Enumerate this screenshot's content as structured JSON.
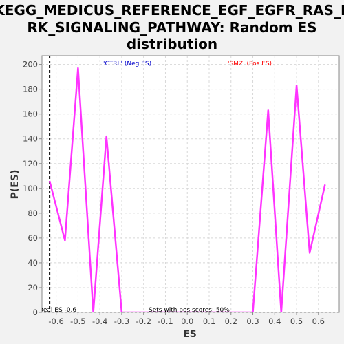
{
  "chart_data": {
    "type": "line",
    "title_lines": [
      "KEGG_MEDICUS_REFERENCE_EGF_EGFR_RAS_E",
      "RK_SIGNALING_PATHWAY: Random ES",
      "distribution"
    ],
    "xlabel": "ES",
    "ylabel": "P(ES)",
    "xlim": [
      -0.665,
      0.695
    ],
    "ylim": [
      0,
      207
    ],
    "xticks": [
      -0.6,
      -0.5,
      -0.4,
      -0.3,
      -0.2,
      -0.1,
      0.0,
      0.1,
      0.2,
      0.3,
      0.4,
      0.5,
      0.6
    ],
    "xtick_labels": [
      "-0.6",
      "-0.5",
      "-0.4",
      "-0.3",
      "-0.2",
      "-0.1",
      "0.0",
      "0.1",
      "0.2",
      "0.3",
      "0.4",
      "0.5",
      "0.6"
    ],
    "yticks": [
      0,
      20,
      40,
      60,
      80,
      100,
      120,
      140,
      160,
      180,
      200
    ],
    "ytick_labels": [
      "0",
      "20",
      "40",
      "60",
      "80",
      "100",
      "120",
      "140",
      "160",
      "180",
      "200"
    ],
    "grid": true,
    "series": [
      {
        "color": "#ff33ff",
        "x": [
          -0.63,
          -0.56,
          -0.5,
          -0.43,
          -0.37,
          -0.3,
          0.3,
          0.37,
          0.43,
          0.5,
          0.56,
          0.63
        ],
        "y": [
          106,
          58,
          197,
          0,
          142,
          0,
          0,
          163,
          0,
          183,
          48,
          103
        ]
      }
    ],
    "vline": {
      "x": -0.63,
      "style": "dashed",
      "color": "#000000"
    },
    "annotations": {
      "neg_label": "'CTRL' (Neg ES)",
      "pos_label": "'SMZ' (Pos ES)",
      "neg_color": "#0000cc",
      "pos_color": "#ff0000",
      "real_es": "Real ES -0.6",
      "pos_scores": "Sets with pos scores: 50%"
    }
  }
}
